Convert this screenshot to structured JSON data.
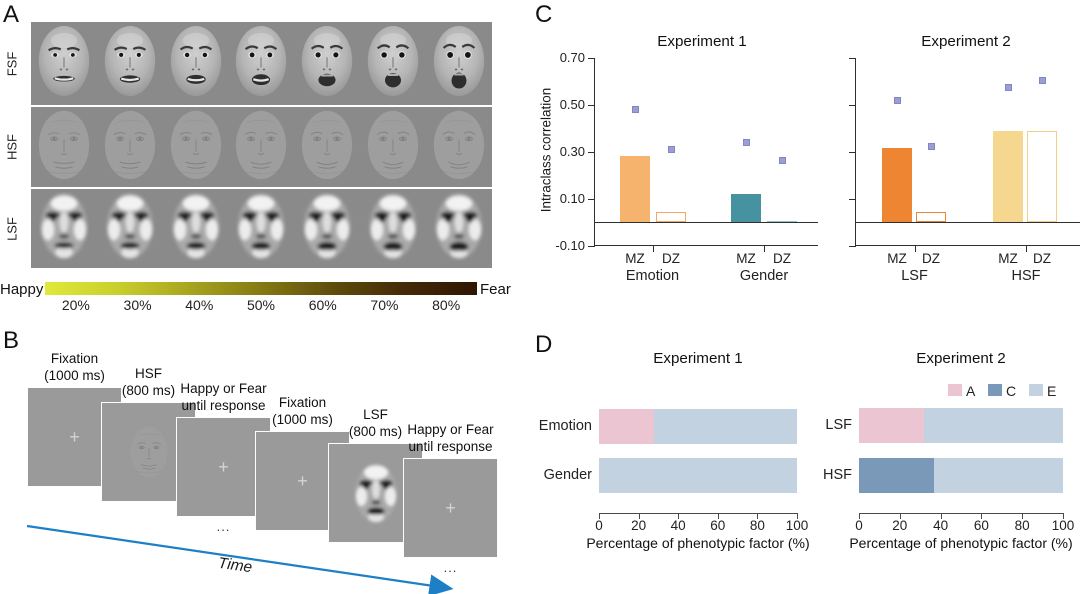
{
  "figure": {
    "panel_a": {
      "letter": "A",
      "row_labels": [
        "FSF",
        "HSF",
        "LSF"
      ],
      "faces_per_row": 7,
      "morph_direction": "happy-to-fear",
      "colorbar": {
        "left_label": "Happy",
        "right_label": "Fear",
        "tick_labels": [
          "20%",
          "30%",
          "40%",
          "50%",
          "60%",
          "70%",
          "80%"
        ],
        "gradient_stops": [
          "#dfe93a",
          "#c9cf2d",
          "#a8a51f",
          "#837a14",
          "#5f4d0c",
          "#432a07",
          "#2f1504"
        ]
      }
    },
    "panel_b": {
      "letter": "B",
      "screens": [
        {
          "label_lines": [
            "Fixation",
            "(1000 ms)"
          ],
          "content": "fixation-cross"
        },
        {
          "label_lines": [
            "HSF",
            "(800 ms)"
          ],
          "content": "hsf-face"
        },
        {
          "label_lines": [
            "Happy or Fear",
            "until response"
          ],
          "content": "fixation-cross",
          "ellipsis_below": "..."
        },
        {
          "label_lines": [
            "Fixation",
            "(1000 ms)"
          ],
          "content": "fixation-cross"
        },
        {
          "label_lines": [
            "LSF",
            "(800 ms)"
          ],
          "content": "lsf-face"
        },
        {
          "label_lines": [
            "Happy or Fear",
            "until response"
          ],
          "content": "fixation-cross",
          "ellipsis_below": "..."
        }
      ],
      "time_label": "Time",
      "arrow_color": "#1d80c6"
    },
    "panel_c": {
      "letter": "C",
      "ylabel": "Intraclass correlation"
    },
    "panel_d": {
      "letter": "D"
    }
  },
  "chart_data": [
    {
      "id": "c-experiment-1",
      "type": "bar",
      "title": "Experiment 1",
      "ylabel": "Intraclass correlation",
      "ylim": [
        -0.1,
        0.7
      ],
      "yticks": [
        "0.70",
        "0.50",
        "0.30",
        "0.10",
        "-0.10"
      ],
      "ytick_values": [
        0.7,
        0.5,
        0.3,
        0.1,
        -0.1
      ],
      "yticks_labeled": true,
      "grid": false,
      "point_marker": "square",
      "point_color": "#9a9ed2",
      "point_border": "#8286c2",
      "groups": [
        {
          "label": "Emotion",
          "bars": [
            {
              "label": "MZ",
              "value": 0.285,
              "fill": "solid",
              "color": "#f6b36e",
              "point": 0.48
            },
            {
              "label": "DZ",
              "value": 0.045,
              "fill": "outline",
              "color": "#f3a963",
              "point": 0.31
            }
          ]
        },
        {
          "label": "Gender",
          "bars": [
            {
              "label": "MZ",
              "value": 0.12,
              "fill": "solid",
              "color": "#4792a1",
              "point": 0.34
            },
            {
              "label": "DZ",
              "value": 0.006,
              "fill": "solid",
              "color": "#8ec4cd",
              "point": 0.265
            }
          ]
        }
      ]
    },
    {
      "id": "c-experiment-2",
      "type": "bar",
      "title": "Experiment 2",
      "ylim": [
        -0.1,
        0.7
      ],
      "ytick_values": [
        0.7,
        0.5,
        0.3,
        0.1,
        -0.1
      ],
      "yticks_labeled": false,
      "grid": false,
      "point_marker": "square",
      "point_color": "#9a9ed2",
      "point_border": "#8286c2",
      "groups": [
        {
          "label": "LSF",
          "bars": [
            {
              "label": "MZ",
              "value": 0.315,
              "fill": "solid",
              "color": "#ee8532",
              "point": 0.52
            },
            {
              "label": "DZ",
              "value": 0.045,
              "fill": "outline",
              "color": "#ee8532",
              "point": 0.325
            }
          ]
        },
        {
          "label": "HSF",
          "bars": [
            {
              "label": "MZ",
              "value": 0.39,
              "fill": "solid",
              "color": "#f6d78f",
              "point": 0.575
            },
            {
              "label": "DZ",
              "value": 0.39,
              "fill": "outline",
              "color": "#f0d088",
              "point": 0.605
            }
          ]
        }
      ]
    },
    {
      "id": "d-experiment-1",
      "type": "stacked-bar-horizontal",
      "title": "Experiment 1",
      "xlabel": "Percentage of phenotypic factor (%)",
      "xticks": [
        0,
        20,
        40,
        60,
        80,
        100
      ],
      "xlim": [
        0,
        100
      ],
      "categories": [
        "Emotion",
        "Gender"
      ],
      "series": [
        {
          "name": "A",
          "color": "#ebc5d2",
          "values": [
            28,
            0
          ]
        },
        {
          "name": "C",
          "color": "#7a99b8",
          "values": [
            0,
            0
          ]
        },
        {
          "name": "E",
          "color": "#c2d2e0",
          "values": [
            72,
            100
          ]
        }
      ],
      "legend_visible": false
    },
    {
      "id": "d-experiment-2",
      "type": "stacked-bar-horizontal",
      "title": "Experiment 2",
      "xlabel": "Percentage of phenotypic factor (%)",
      "xticks": [
        0,
        20,
        40,
        60,
        80,
        100
      ],
      "xlim": [
        0,
        100
      ],
      "categories": [
        "LSF",
        "HSF"
      ],
      "series": [
        {
          "name": "A",
          "color": "#ebc5d2",
          "values": [
            32,
            0
          ]
        },
        {
          "name": "C",
          "color": "#7a99b8",
          "values": [
            0,
            37
          ]
        },
        {
          "name": "E",
          "color": "#c2d2e0",
          "values": [
            68,
            63
          ]
        }
      ],
      "legend_visible": true,
      "legend_position": "top-right"
    }
  ]
}
